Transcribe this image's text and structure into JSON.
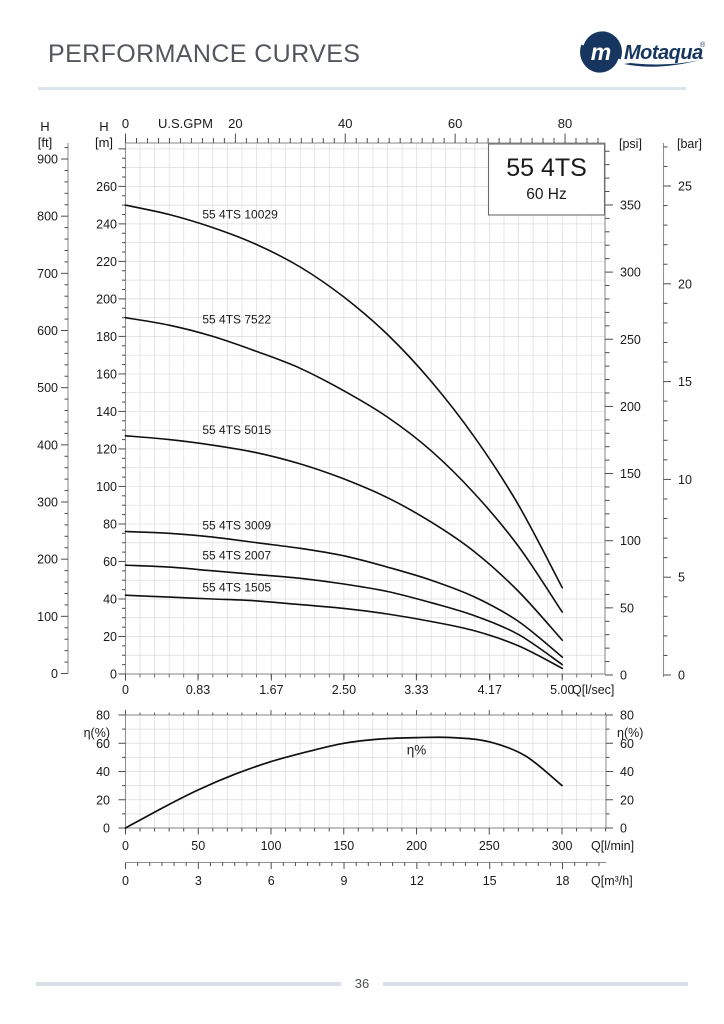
{
  "header": {
    "title": "PERFORMANCE CURVES",
    "brand": "Motaqua",
    "brand_mark": "m",
    "registered": "®"
  },
  "chart_data": [
    {
      "id": "head-flow-chart",
      "type": "line",
      "title": "55 4TS",
      "subtitle": "60 Hz",
      "top_axis": {
        "label": "U.S.GPM",
        "ticks": [
          "0",
          "20",
          "40",
          "60",
          "80"
        ]
      },
      "bottom_axis": {
        "label": "Q[l/sec]",
        "ticks": [
          "0",
          "0.83",
          "1.67",
          "2.50",
          "3.33",
          "4.17",
          "5.00"
        ]
      },
      "left_axis_m": {
        "label_line1": "H",
        "label_line2": "[m]",
        "ticks": [
          "0",
          "20",
          "40",
          "60",
          "80",
          "100",
          "120",
          "140",
          "160",
          "180",
          "200",
          "220",
          "240",
          "260"
        ]
      },
      "left_axis_ft": {
        "label_line1": "H",
        "label_line2": "[ft]",
        "ticks": [
          "0",
          "100",
          "200",
          "300",
          "400",
          "500",
          "600",
          "700",
          "800",
          "900"
        ]
      },
      "right_axis_psi": {
        "label": "[psi]",
        "ticks": [
          "0",
          "50",
          "100",
          "150",
          "200",
          "250",
          "300",
          "350"
        ]
      },
      "right_axis_bar": {
        "label": "[bar]",
        "ticks": [
          "0",
          "5",
          "10",
          "15",
          "20",
          "25"
        ]
      },
      "xlim_lsec": [
        0,
        5.5
      ],
      "ylim_m": [
        0,
        283
      ],
      "grid": "on",
      "q_lsec": [
        0,
        0.5,
        1,
        1.5,
        2,
        2.5,
        3,
        3.5,
        4,
        4.5,
        5
      ],
      "series": [
        {
          "name": "55 4TS 10029",
          "h_m": [
            250,
            245,
            238,
            229,
            217,
            201,
            181,
            156,
            126,
            90,
            46
          ],
          "label_at": [
            0.88,
            243
          ]
        },
        {
          "name": "55 4TS 7522",
          "h_m": [
            190,
            186,
            180,
            172,
            163,
            151,
            137,
            119,
            96,
            68,
            33
          ],
          "label_at": [
            0.88,
            187
          ]
        },
        {
          "name": "55 4TS 5015",
          "h_m": [
            127,
            125,
            122,
            118,
            112,
            104,
            94,
            81,
            65,
            44,
            18
          ],
          "label_at": [
            0.88,
            128
          ]
        },
        {
          "name": "55 4TS 3009",
          "h_m": [
            76,
            75,
            73,
            70,
            67,
            63,
            57,
            50,
            41,
            28,
            9
          ],
          "label_at": [
            0.88,
            77
          ]
        },
        {
          "name": "55 4TS 2007",
          "h_m": [
            58,
            57,
            55,
            53,
            51,
            48,
            44,
            38,
            31,
            21,
            5
          ],
          "label_at": [
            0.88,
            61
          ]
        },
        {
          "name": "55 4TS 1505",
          "h_m": [
            42,
            41,
            40,
            39,
            37,
            35,
            32,
            28,
            23,
            15,
            3
          ],
          "label_at": [
            0.88,
            44
          ]
        }
      ]
    },
    {
      "id": "efficiency-chart",
      "type": "line",
      "y_axis": {
        "label": "η(%)",
        "ticks": [
          "0",
          "20",
          "40",
          "60",
          "80"
        ]
      },
      "x_axis_lmin": {
        "label": "Q[l/min]",
        "ticks": [
          "0",
          "50",
          "100",
          "150",
          "200",
          "250",
          "300"
        ]
      },
      "x_axis_m3h": {
        "label": "Q[m³/h]",
        "ticks": [
          "0",
          "3",
          "6",
          "9",
          "12",
          "15",
          "18"
        ]
      },
      "ylim": [
        0,
        80
      ],
      "xlim_lmin": [
        0,
        330
      ],
      "grid": "on",
      "series": [
        {
          "name": "η%",
          "q_lmin": [
            0,
            25,
            50,
            75,
            100,
            125,
            150,
            175,
            200,
            225,
            250,
            275,
            300
          ],
          "eta_pct": [
            0,
            14,
            27,
            38,
            47,
            54,
            60,
            63,
            64,
            64,
            61,
            51,
            30
          ],
          "label_at": [
            200,
            52
          ]
        }
      ]
    }
  ],
  "footer": {
    "page_number": "36"
  }
}
